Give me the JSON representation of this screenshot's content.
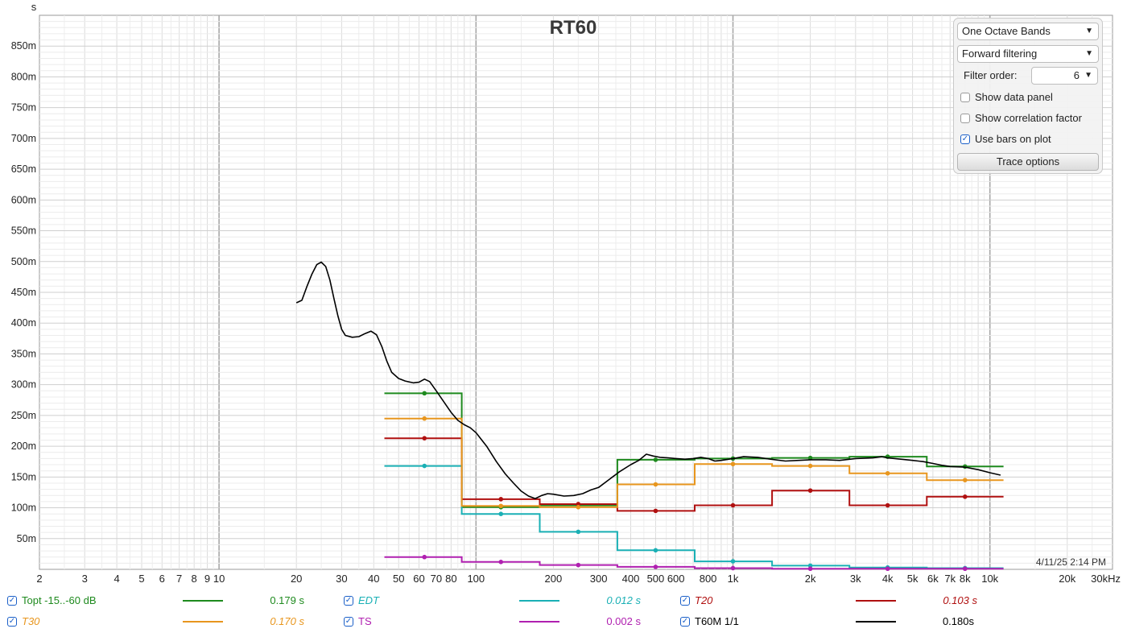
{
  "chart_data": {
    "type": "line",
    "title": "RT60",
    "ylabel": "s",
    "x_scale": "log",
    "xlim": [
      2,
      30000
    ],
    "ylim": [
      0,
      0.9
    ],
    "y_ticks": [
      0.05,
      0.1,
      0.15,
      0.2,
      0.25,
      0.3,
      0.35,
      0.4,
      0.45,
      0.5,
      0.55,
      0.6,
      0.65,
      0.7,
      0.75,
      0.8,
      0.85
    ],
    "y_tick_labels": [
      "50m",
      "100m",
      "150m",
      "200m",
      "250m",
      "300m",
      "350m",
      "400m",
      "450m",
      "500m",
      "550m",
      "600m",
      "650m",
      "700m",
      "750m",
      "800m",
      "850m"
    ],
    "x_ticks": [
      2,
      3,
      4,
      5,
      6,
      7,
      8,
      9,
      10,
      20,
      30,
      40,
      50,
      60,
      70,
      80,
      100,
      200,
      300,
      400,
      500,
      600,
      800,
      1000,
      2000,
      3000,
      4000,
      5000,
      6000,
      7000,
      8000,
      10000,
      20000,
      30000
    ],
    "x_tick_labels": [
      "2",
      "3",
      "4",
      "5",
      "6",
      "7",
      "8",
      "9",
      "10",
      "20",
      "30",
      "40",
      "50",
      "60",
      "70",
      "80",
      "100",
      "200",
      "300",
      "400",
      "500",
      "600",
      "800",
      "1k",
      "2k",
      "3k",
      "4k",
      "5k",
      "6k",
      "7k",
      "8k",
      "10k",
      "20k",
      "30kHz"
    ],
    "grid": true,
    "band_centers": [
      63,
      125,
      250,
      500,
      1000,
      2000,
      4000,
      8000
    ],
    "band_edges": [
      44,
      88,
      177,
      355,
      710,
      1420,
      2840,
      5680,
      11300
    ],
    "series": [
      {
        "name": "Topt -15..-60 dB",
        "color": "#1e8a1e",
        "style": "bars",
        "values": [
          0.286,
          0.101,
          0.104,
          0.178,
          0.18,
          0.181,
          0.183,
          0.167
        ]
      },
      {
        "name": "EDT",
        "color": "#1ab0b5",
        "style": "bars",
        "values": [
          0.168,
          0.09,
          0.061,
          0.031,
          0.013,
          0.006,
          0.003,
          0.002
        ]
      },
      {
        "name": "T20",
        "color": "#b01010",
        "style": "bars",
        "values": [
          0.213,
          0.114,
          0.106,
          0.095,
          0.104,
          0.128,
          0.104,
          0.118
        ]
      },
      {
        "name": "T30",
        "color": "#e8961e",
        "style": "bars",
        "values": [
          0.245,
          0.103,
          0.101,
          0.138,
          0.171,
          0.168,
          0.156,
          0.145
        ]
      },
      {
        "name": "TS",
        "color": "#b020b0",
        "style": "bars",
        "values": [
          0.02,
          0.012,
          0.007,
          0.004,
          0.002,
          0.001,
          0.001,
          0.001
        ]
      },
      {
        "name": "T60M 1/1",
        "color": "#000000",
        "style": "line",
        "points": [
          [
            20,
            0.433
          ],
          [
            21,
            0.437
          ],
          [
            22,
            0.46
          ],
          [
            23,
            0.48
          ],
          [
            24,
            0.495
          ],
          [
            25,
            0.499
          ],
          [
            26,
            0.492
          ],
          [
            27,
            0.47
          ],
          [
            28,
            0.44
          ],
          [
            29,
            0.412
          ],
          [
            30,
            0.39
          ],
          [
            31,
            0.38
          ],
          [
            33,
            0.377
          ],
          [
            35,
            0.378
          ],
          [
            37,
            0.383
          ],
          [
            39,
            0.387
          ],
          [
            41,
            0.381
          ],
          [
            43,
            0.362
          ],
          [
            45,
            0.338
          ],
          [
            47,
            0.32
          ],
          [
            50,
            0.31
          ],
          [
            53,
            0.306
          ],
          [
            57,
            0.303
          ],
          [
            60,
            0.304
          ],
          [
            63,
            0.309
          ],
          [
            66,
            0.305
          ],
          [
            70,
            0.29
          ],
          [
            75,
            0.272
          ],
          [
            80,
            0.255
          ],
          [
            85,
            0.242
          ],
          [
            90,
            0.235
          ],
          [
            95,
            0.23
          ],
          [
            100,
            0.222
          ],
          [
            110,
            0.2
          ],
          [
            120,
            0.175
          ],
          [
            130,
            0.155
          ],
          [
            140,
            0.14
          ],
          [
            150,
            0.127
          ],
          [
            160,
            0.119
          ],
          [
            170,
            0.115
          ],
          [
            180,
            0.12
          ],
          [
            190,
            0.123
          ],
          [
            200,
            0.122
          ],
          [
            220,
            0.119
          ],
          [
            240,
            0.12
          ],
          [
            260,
            0.123
          ],
          [
            280,
            0.129
          ],
          [
            300,
            0.133
          ],
          [
            330,
            0.146
          ],
          [
            360,
            0.158
          ],
          [
            400,
            0.17
          ],
          [
            430,
            0.177
          ],
          [
            460,
            0.187
          ],
          [
            490,
            0.184
          ],
          [
            520,
            0.182
          ],
          [
            560,
            0.181
          ],
          [
            600,
            0.18
          ],
          [
            650,
            0.179
          ],
          [
            700,
            0.18
          ],
          [
            750,
            0.182
          ],
          [
            800,
            0.18
          ],
          [
            850,
            0.176
          ],
          [
            900,
            0.177
          ],
          [
            1000,
            0.18
          ],
          [
            1100,
            0.183
          ],
          [
            1250,
            0.182
          ],
          [
            1400,
            0.179
          ],
          [
            1600,
            0.176
          ],
          [
            1800,
            0.177
          ],
          [
            2000,
            0.178
          ],
          [
            2300,
            0.178
          ],
          [
            2600,
            0.177
          ],
          [
            3000,
            0.18
          ],
          [
            3500,
            0.181
          ],
          [
            3800,
            0.183
          ],
          [
            4000,
            0.181
          ],
          [
            4500,
            0.179
          ],
          [
            5000,
            0.177
          ],
          [
            5500,
            0.175
          ],
          [
            6000,
            0.172
          ],
          [
            6500,
            0.169
          ],
          [
            7000,
            0.167
          ],
          [
            8000,
            0.166
          ],
          [
            9000,
            0.162
          ],
          [
            10000,
            0.157
          ],
          [
            11000,
            0.153
          ]
        ]
      }
    ],
    "timestamp": "4/11/25 2:14 PM"
  },
  "panel": {
    "bands": "One Octave Bands",
    "filtering": "Forward filtering",
    "filter_order_label": "Filter order:",
    "filter_order_value": "6",
    "show_data_panel": "Show data panel",
    "show_correlation": "Show correlation factor",
    "use_bars": "Use bars on plot",
    "trace_options": "Trace options"
  },
  "legend": {
    "topt_name": "Topt -15..-60 dB",
    "topt_value": "0.179 s",
    "edt_name": "EDT",
    "edt_value": "0.012 s",
    "t20_name": "T20",
    "t20_value": "0.103 s",
    "t30_name": "T30",
    "t30_value": "0.170 s",
    "ts_name": "TS",
    "ts_value": "0.002 s",
    "t60m_name": "T60M 1/1",
    "t60m_value": "0.180s",
    "colors": {
      "topt": "#1e8a1e",
      "edt": "#1ab0b5",
      "t20": "#b01010",
      "t30": "#e8961e",
      "ts": "#b020b0",
      "t60m": "#000000"
    }
  }
}
